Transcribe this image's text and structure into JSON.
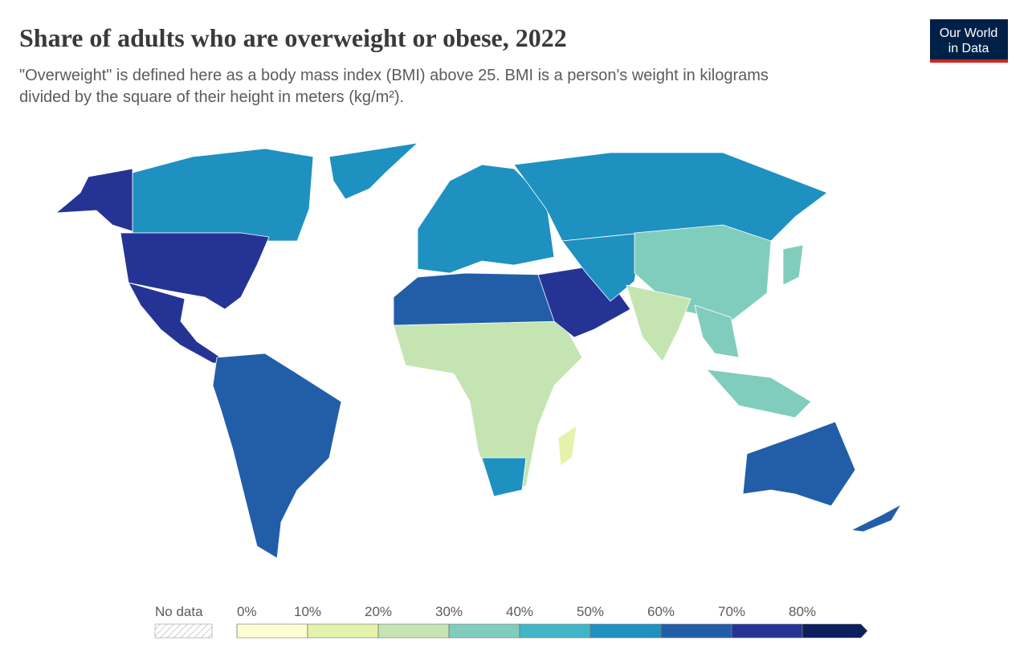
{
  "header": {
    "title": "Share of adults who are overweight or obese, 2022",
    "subtitle_lines": [
      "\"Overweight\" is defined here as a body mass index (BMI) above 25. BMI is a person's weight in kilograms",
      "divided by the square of their height in meters (kg/m²)."
    ],
    "logo_lines": [
      "Our World",
      "in Data"
    ]
  },
  "legend": {
    "no_data": "No data",
    "ticks": [
      {
        "value": 0,
        "label": "0%"
      },
      {
        "value": 10,
        "label": "10%"
      },
      {
        "value": 20,
        "label": "20%"
      },
      {
        "value": 30,
        "label": "30%"
      },
      {
        "value": 40,
        "label": "40%"
      },
      {
        "value": 50,
        "label": "50%"
      },
      {
        "value": 60,
        "label": "60%"
      },
      {
        "value": 70,
        "label": "70%"
      },
      {
        "value": 80,
        "label": "80%"
      }
    ],
    "colors": [
      "#fdfdd2",
      "#e4f3a9",
      "#c4e5b2",
      "#80cdbd",
      "#42b6c6",
      "#1e91c0",
      "#225ea8",
      "#253494",
      "#0a1f5c"
    ]
  }
}
